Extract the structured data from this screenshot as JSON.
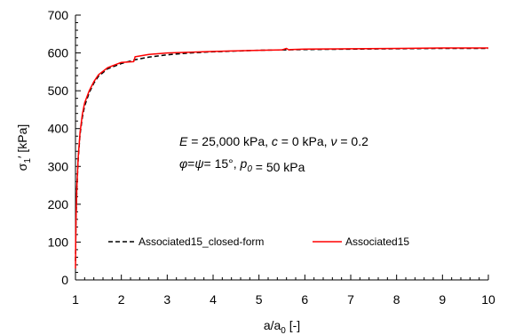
{
  "chart_data": {
    "type": "line",
    "xlabel": {
      "main": "a/a",
      "sub": "0",
      "unit": " [-]"
    },
    "ylabel": {
      "main": "σ",
      "sub": "1",
      "prime": "′",
      "unit": " [kPa]"
    },
    "xlim": [
      1,
      10
    ],
    "ylim": [
      0,
      700
    ],
    "x_ticks": [
      1,
      2,
      3,
      4,
      5,
      6,
      7,
      8,
      9,
      10
    ],
    "y_ticks": [
      0,
      100,
      200,
      300,
      400,
      500,
      600,
      700
    ],
    "grid": false,
    "legend_position": "bottom",
    "annotation": {
      "line1": [
        {
          "t": "E",
          "i": true
        },
        {
          "t": " = 25,000 kPa, "
        },
        {
          "t": "c",
          "i": true
        },
        {
          "t": " = 0 kPa, "
        },
        {
          "t": "ν",
          "i": true
        },
        {
          "t": "  = 0.2"
        }
      ],
      "line2": [
        {
          "t": "φ",
          "i": true
        },
        {
          "t": "="
        },
        {
          "t": "ψ",
          "i": true
        },
        {
          "t": "= 15°, "
        },
        {
          "t": "p",
          "i": true
        },
        {
          "t": "0",
          "i": true,
          "sub": true
        },
        {
          "t": " = 50 kPa"
        }
      ]
    },
    "series": [
      {
        "name": "Associated15_closed-form",
        "color": "#000000",
        "style": "dashed",
        "x": [
          1.0,
          1.01,
          1.03,
          1.06,
          1.1,
          1.15,
          1.2,
          1.3,
          1.4,
          1.5,
          1.7,
          2.0,
          2.3,
          2.6,
          3.0,
          3.5,
          4.0,
          5.0,
          6.0,
          7.0,
          8.0,
          9.0,
          10.0
        ],
        "y": [
          50,
          150,
          240,
          320,
          385,
          430,
          460,
          495,
          520,
          538,
          558,
          572,
          582,
          589,
          595,
          600,
          603,
          607,
          609,
          610,
          611,
          612,
          612
        ]
      },
      {
        "name": "Associated15",
        "color": "#ff0000",
        "style": "solid",
        "x": [
          1.0,
          1.01,
          1.03,
          1.06,
          1.1,
          1.15,
          1.2,
          1.3,
          1.4,
          1.5,
          1.7,
          2.0,
          2.27,
          2.3,
          2.6,
          3.0,
          3.5,
          4.0,
          5.0,
          5.5,
          5.6,
          5.65,
          5.7,
          6.0,
          7.0,
          8.0,
          9.0,
          10.0
        ],
        "y": [
          30,
          155,
          245,
          325,
          390,
          438,
          468,
          500,
          524,
          542,
          561,
          575,
          577,
          590,
          596,
          600,
          602,
          604,
          607,
          608,
          612,
          608,
          609,
          610,
          611,
          612,
          613,
          613
        ]
      }
    ]
  }
}
